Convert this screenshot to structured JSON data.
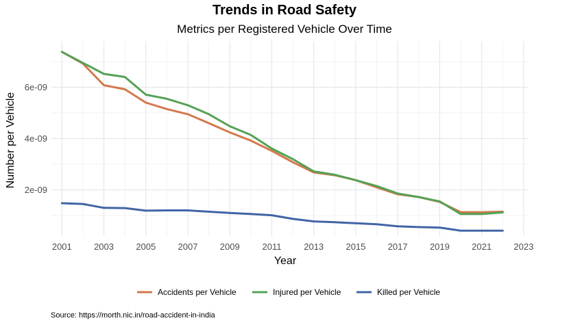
{
  "chart_data": {
    "type": "line",
    "title": "Trends in Road Safety",
    "subtitle": "Metrics per Registered Vehicle Over Time",
    "xlabel": "Year",
    "ylabel": "Number per Vehicle",
    "caption": "Source: https://morth.nic.in/road-accident-in-india",
    "x": [
      2001,
      2002,
      2003,
      2004,
      2005,
      2006,
      2007,
      2008,
      2009,
      2010,
      2011,
      2012,
      2013,
      2014,
      2015,
      2016,
      2017,
      2018,
      2019,
      2020,
      2021,
      2022
    ],
    "xlim": [
      2000.5,
      2023.2
    ],
    "ylim": [
      2e-10,
      7.8e-09
    ],
    "x_ticks": [
      2001,
      2003,
      2005,
      2007,
      2009,
      2011,
      2013,
      2015,
      2017,
      2019,
      2021,
      2023
    ],
    "x_tick_labels": [
      "2001",
      "2003",
      "2005",
      "2007",
      "2009",
      "2011",
      "2013",
      "2015",
      "2017",
      "2019",
      "2021",
      "2023"
    ],
    "y_ticks": [
      2e-09,
      4e-09,
      6e-09
    ],
    "y_tick_labels": [
      "2e-09",
      "4e-09",
      "6e-09"
    ],
    "grid": true,
    "legend_position": "bottom",
    "series": [
      {
        "name": "Accidents per Vehicle",
        "color": "#d4784a",
        "values": [
          7.38e-09,
          6.92e-09,
          6.08e-09,
          5.92e-09,
          5.4e-09,
          5.15e-09,
          4.95e-09,
          4.6e-09,
          4.24e-09,
          3.92e-09,
          3.52e-09,
          3.08e-09,
          2.68e-09,
          2.57e-09,
          2.38e-09,
          2.1e-09,
          1.83e-09,
          1.72e-09,
          1.53e-09,
          1.13e-09,
          1.13e-09,
          1.15e-09
        ]
      },
      {
        "name": "Injured per Vehicle",
        "color": "#55a156",
        "values": [
          7.38e-09,
          6.95e-09,
          6.52e-09,
          6.4e-09,
          5.71e-09,
          5.55e-09,
          5.3e-09,
          4.95e-09,
          4.48e-09,
          4.14e-09,
          3.61e-09,
          3.2e-09,
          2.72e-09,
          2.59e-09,
          2.38e-09,
          2.15e-09,
          1.86e-09,
          1.72e-09,
          1.55e-09,
          1.06e-09,
          1.06e-09,
          1.12e-09
        ]
      },
      {
        "name": "Killed per Vehicle",
        "color": "#4064a6",
        "values": [
          1.48e-09,
          1.45e-09,
          1.3e-09,
          1.29e-09,
          1.19e-09,
          1.2e-09,
          1.2e-09,
          1.15e-09,
          1.1e-09,
          1.06e-09,
          1.01e-09,
          8.7e-10,
          7.7e-10,
          7.4e-10,
          7e-10,
          6.6e-10,
          5.8e-10,
          5.5e-10,
          5.3e-10,
          4.1e-10,
          4.1e-10,
          4.1e-10
        ]
      }
    ]
  }
}
